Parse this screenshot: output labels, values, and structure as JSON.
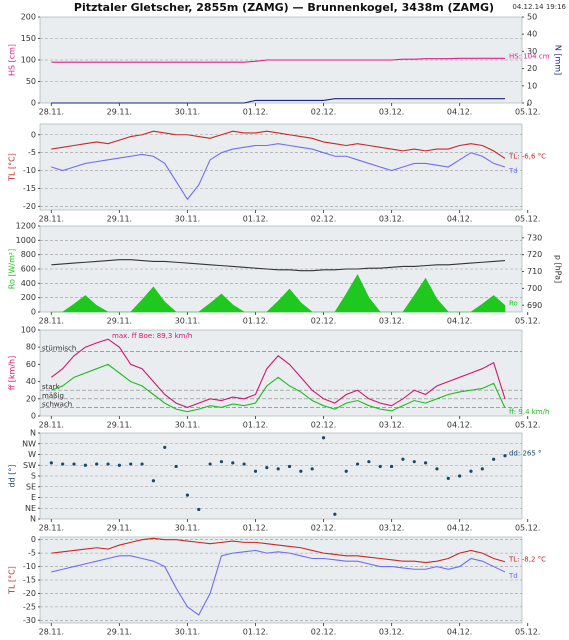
{
  "title": "Pitztaler Gletscher, 2855m (ZAMG) — Brunnenkogel, 3438m (ZAMG)",
  "timestamp": "04.12.14 19:16",
  "chart_data": [
    {
      "type": "line",
      "ylabel": "HS [cm]",
      "y2label": "N [mm]",
      "grid": true,
      "x": [
        0,
        4,
        8,
        12,
        16,
        20,
        24,
        28,
        32,
        36,
        40,
        44,
        48,
        52,
        56,
        60,
        64,
        68,
        72,
        76,
        80,
        84,
        88,
        92,
        96,
        100,
        104,
        108,
        112,
        116,
        120,
        124,
        128,
        132,
        136,
        140,
        144,
        148,
        152,
        156,
        160
      ],
      "xlim": [
        -4,
        166
      ],
      "xticks": [
        {
          "value": 0,
          "label": "28.11."
        },
        {
          "value": 24,
          "label": "29.11."
        },
        {
          "value": 48,
          "label": "30.11."
        },
        {
          "value": 72,
          "label": "01.12."
        },
        {
          "value": 96,
          "label": "02.12."
        },
        {
          "value": 120,
          "label": "03.12."
        },
        {
          "value": 144,
          "label": "04.12."
        },
        {
          "value": 168,
          "label": "05.12."
        }
      ],
      "ylim": [
        0,
        200
      ],
      "yticks": [
        0,
        50,
        100,
        150,
        200
      ],
      "y2lim": [
        0,
        50
      ],
      "y2ticks": [
        0,
        10,
        20,
        30,
        40,
        50
      ],
      "series": [
        {
          "label": "HS: 104 cm",
          "color": "#e0208a",
          "values": [
            95,
            95,
            95,
            95,
            95,
            95,
            95,
            95,
            95,
            95,
            95,
            95,
            95,
            95,
            95,
            95,
            95,
            95,
            97,
            100,
            100,
            100,
            100,
            100,
            100,
            100,
            100,
            100,
            100,
            100,
            100,
            102,
            102,
            103,
            103,
            103,
            104,
            104,
            104,
            104,
            104
          ]
        },
        {
          "color": "#1a237e",
          "axis": "y2",
          "values": [
            0,
            0,
            0,
            0,
            0,
            0,
            0,
            0,
            0,
            0,
            0,
            0,
            0,
            0,
            0,
            0,
            0,
            0,
            1.5,
            1.5,
            1.5,
            1.5,
            1.5,
            1.5,
            1.5,
            2.5,
            2.5,
            2.5,
            2.5,
            2.5,
            2.5,
            2.5,
            2.5,
            2.5,
            2.5,
            2.5,
            2.5,
            2.5,
            2.5,
            2.5,
            2.5
          ]
        }
      ]
    },
    {
      "type": "line",
      "ylabel": "TL [°C]",
      "grid": true,
      "x": [
        0,
        4,
        8,
        12,
        16,
        20,
        24,
        28,
        32,
        36,
        40,
        44,
        48,
        52,
        56,
        60,
        64,
        68,
        72,
        76,
        80,
        84,
        88,
        92,
        96,
        100,
        104,
        108,
        112,
        116,
        120,
        124,
        128,
        132,
        136,
        140,
        144,
        148,
        152,
        156,
        160
      ],
      "xlim": [
        -4,
        166
      ],
      "xticks": [
        {
          "value": 0,
          "label": "28.11."
        },
        {
          "value": 24,
          "label": "29.11."
        },
        {
          "value": 48,
          "label": "30.11."
        },
        {
          "value": 72,
          "label": "01.12."
        },
        {
          "value": 96,
          "label": "02.12."
        },
        {
          "value": 120,
          "label": "03.12."
        },
        {
          "value": 144,
          "label": "04.12."
        },
        {
          "value": 168,
          "label": "05.12."
        }
      ],
      "ylim": [
        -21,
        3
      ],
      "yticks": [
        -20,
        -15,
        -10,
        -5,
        0
      ],
      "series": [
        {
          "label": "TL: -6,6 °C",
          "color": "#c62828",
          "values": [
            -4,
            -3.5,
            -3,
            -2.5,
            -2,
            -2.5,
            -1.5,
            -0.5,
            0,
            1,
            0.5,
            0,
            0,
            -0.5,
            -1,
            0,
            1,
            0.5,
            0.5,
            1,
            0.5,
            0,
            -0.5,
            -1,
            -2,
            -2.5,
            -3,
            -2.5,
            -3,
            -3.5,
            -4,
            -4.5,
            -4,
            -4.5,
            -4,
            -4,
            -3,
            -2.5,
            -3,
            -4.5,
            -6.6
          ]
        },
        {
          "label": "Td",
          "color": "#6f6ff0",
          "values": [
            -9,
            -10,
            -9,
            -8,
            -7.5,
            -7,
            -6.5,
            -6,
            -5.5,
            -6,
            -8,
            -13,
            -18,
            -14,
            -7,
            -5,
            -4,
            -3.5,
            -3,
            -3,
            -2.5,
            -3,
            -3.5,
            -4,
            -5,
            -6,
            -6,
            -7,
            -8,
            -9,
            -10,
            -9,
            -8,
            -8,
            -8.5,
            -9,
            -7,
            -5,
            -6,
            -8,
            -9
          ]
        }
      ]
    },
    {
      "type": "line",
      "ylabel": "Ro [W/m²]",
      "y2label": "p [hPa]",
      "grid": true,
      "x": [
        0,
        4,
        8,
        12,
        16,
        20,
        24,
        28,
        32,
        36,
        40,
        44,
        48,
        52,
        56,
        60,
        64,
        68,
        72,
        76,
        80,
        84,
        88,
        92,
        96,
        100,
        104,
        108,
        112,
        116,
        120,
        124,
        128,
        132,
        136,
        140,
        144,
        148,
        152,
        156,
        160
      ],
      "xlim": [
        -4,
        166
      ],
      "xticks": [
        {
          "value": 0,
          "label": "28.11."
        },
        {
          "value": 24,
          "label": "29.11."
        },
        {
          "value": 48,
          "label": "30.11."
        },
        {
          "value": 72,
          "label": "01.12."
        },
        {
          "value": 96,
          "label": "02.12."
        },
        {
          "value": 120,
          "label": "03.12."
        },
        {
          "value": 144,
          "label": "04.12."
        },
        {
          "value": 168,
          "label": "05.12."
        }
      ],
      "ylim": [
        0,
        1200
      ],
      "yticks": [
        0,
        200,
        400,
        600,
        800,
        1000,
        1200
      ],
      "y2lim": [
        686,
        737
      ],
      "y2ticks": [
        690,
        700,
        710,
        720,
        730
      ],
      "series": [
        {
          "label": "Ro",
          "color": "#1ec81e",
          "area": true,
          "values": [
            0,
            0,
            110,
            230,
            90,
            0,
            0,
            0,
            170,
            350,
            140,
            0,
            0,
            0,
            120,
            250,
            100,
            0,
            0,
            0,
            150,
            320,
            130,
            0,
            0,
            0,
            250,
            520,
            200,
            0,
            0,
            0,
            230,
            470,
            180,
            0,
            0,
            0,
            110,
            230,
            90
          ]
        },
        {
          "color": "#333333",
          "axis": "y2",
          "values": [
            714,
            714.5,
            715,
            715.5,
            716,
            716.5,
            717,
            717,
            716.5,
            716,
            716,
            715.5,
            715,
            714.5,
            714,
            713.5,
            713,
            712.5,
            712,
            711.5,
            711,
            711,
            710.5,
            710.5,
            711,
            711,
            711.5,
            711.5,
            712,
            712,
            712.5,
            713,
            713,
            713.5,
            714,
            714,
            714.5,
            715,
            715.5,
            716,
            716.5
          ]
        }
      ]
    },
    {
      "type": "line",
      "ylabel": "ff [km/h]",
      "grid": false,
      "x": [
        0,
        4,
        8,
        12,
        16,
        20,
        24,
        28,
        32,
        36,
        40,
        44,
        48,
        52,
        56,
        60,
        64,
        68,
        72,
        76,
        80,
        84,
        88,
        92,
        96,
        100,
        104,
        108,
        112,
        116,
        120,
        124,
        128,
        132,
        136,
        140,
        144,
        148,
        152,
        156,
        160
      ],
      "xlim": [
        -4,
        166
      ],
      "xticks": [
        {
          "value": 0,
          "label": "28.11."
        },
        {
          "value": 24,
          "label": "29.11."
        },
        {
          "value": 48,
          "label": "30.11."
        },
        {
          "value": 72,
          "label": "01.12."
        },
        {
          "value": 96,
          "label": "02.12."
        },
        {
          "value": 120,
          "label": "03.12."
        },
        {
          "value": 144,
          "label": "04.12."
        },
        {
          "value": 168,
          "label": "05.12."
        }
      ],
      "ylim": [
        0,
        100
      ],
      "yticks": [
        0,
        20,
        40,
        60,
        80,
        100
      ],
      "reference_lines": [
        {
          "value": 75,
          "label": "stürmisch"
        },
        {
          "value": 30,
          "label": "stark"
        },
        {
          "value": 20,
          "label": "mäßig"
        },
        {
          "value": 10,
          "label": "schwach"
        }
      ],
      "series": [
        {
          "label": "max. ff Boe: 89,3 km/h",
          "label_at": "max",
          "color": "#d0186e",
          "values": [
            45,
            55,
            70,
            80,
            85,
            89.3,
            80,
            60,
            55,
            40,
            25,
            15,
            10,
            15,
            20,
            18,
            22,
            20,
            25,
            55,
            70,
            60,
            45,
            30,
            20,
            15,
            25,
            30,
            20,
            15,
            12,
            20,
            30,
            25,
            35,
            40,
            45,
            50,
            55,
            62,
            20
          ]
        },
        {
          "label": "ff: 9,4 km/h",
          "color": "#22bb22",
          "values": [
            30,
            35,
            45,
            50,
            55,
            60,
            50,
            40,
            35,
            25,
            15,
            8,
            5,
            8,
            12,
            10,
            14,
            12,
            15,
            35,
            45,
            35,
            28,
            18,
            12,
            8,
            15,
            18,
            12,
            8,
            6,
            12,
            18,
            15,
            20,
            25,
            28,
            30,
            32,
            38,
            9.4
          ]
        }
      ]
    },
    {
      "type": "scatter",
      "ylabel": "dd [°]",
      "grid": true,
      "x": [
        0,
        4,
        8,
        12,
        16,
        20,
        24,
        28,
        32,
        36,
        40,
        44,
        48,
        52,
        56,
        60,
        64,
        68,
        72,
        76,
        80,
        84,
        88,
        92,
        96,
        100,
        104,
        108,
        112,
        116,
        120,
        124,
        128,
        132,
        136,
        140,
        144,
        148,
        152,
        156,
        160
      ],
      "xlim": [
        -4,
        166
      ],
      "xticks": [
        {
          "value": 0,
          "label": "28.11."
        },
        {
          "value": 24,
          "label": "29.11."
        },
        {
          "value": 48,
          "label": "30.11."
        },
        {
          "value": 72,
          "label": "01.12."
        },
        {
          "value": 96,
          "label": "02.12."
        },
        {
          "value": 120,
          "label": "03.12."
        },
        {
          "value": 144,
          "label": "04.12."
        },
        {
          "value": 168,
          "label": "05.12."
        }
      ],
      "ylim": [
        0,
        360
      ],
      "yticks": [
        {
          "value": 0,
          "label": "N"
        },
        {
          "value": 45,
          "label": "NE"
        },
        {
          "value": 90,
          "label": "E"
        },
        {
          "value": 135,
          "label": "SE"
        },
        {
          "value": 180,
          "label": "S"
        },
        {
          "value": 225,
          "label": "SW"
        },
        {
          "value": 270,
          "label": "W"
        },
        {
          "value": 315,
          "label": "NW"
        },
        {
          "value": 360,
          "label": "N"
        }
      ],
      "series": [
        {
          "label": "dd: 265 °",
          "color": "#1a4a66",
          "values": [
            235,
            230,
            230,
            225,
            230,
            230,
            225,
            230,
            230,
            160,
            300,
            220,
            100,
            40,
            230,
            240,
            235,
            230,
            200,
            215,
            210,
            220,
            200,
            210,
            340,
            20,
            200,
            230,
            240,
            220,
            220,
            250,
            240,
            235,
            210,
            170,
            180,
            200,
            210,
            250,
            265
          ]
        }
      ]
    },
    {
      "type": "line",
      "ylabel": "TL [°C]",
      "grid": true,
      "x": [
        0,
        4,
        8,
        12,
        16,
        20,
        24,
        28,
        32,
        36,
        40,
        44,
        48,
        52,
        56,
        60,
        64,
        68,
        72,
        76,
        80,
        84,
        88,
        92,
        96,
        100,
        104,
        108,
        112,
        116,
        120,
        124,
        128,
        132,
        136,
        140,
        144,
        148,
        152,
        156,
        160
      ],
      "xlim": [
        -4,
        166
      ],
      "xticks": [
        {
          "value": 0,
          "label": "28.11."
        },
        {
          "value": 24,
          "label": "29.11."
        },
        {
          "value": 48,
          "label": "30.11."
        },
        {
          "value": 72,
          "label": "01.12."
        },
        {
          "value": 96,
          "label": "02.12."
        },
        {
          "value": 120,
          "label": "03.12."
        },
        {
          "value": 144,
          "label": "04.12."
        },
        {
          "value": 168,
          "label": "05.12."
        }
      ],
      "ylim": [
        -31,
        1
      ],
      "yticks": [
        -30,
        -25,
        -20,
        -15,
        -10,
        -5,
        0
      ],
      "series": [
        {
          "label": "TL: -8,2 °C",
          "color": "#c62828",
          "values": [
            -5,
            -4.5,
            -4,
            -3.5,
            -3,
            -3.5,
            -2,
            -1,
            0,
            0.5,
            0,
            0,
            -0.5,
            -1,
            -1.5,
            -1,
            -0.5,
            -1,
            -1,
            -1.5,
            -2,
            -2.5,
            -3,
            -4,
            -5,
            -5.5,
            -6,
            -6,
            -6.5,
            -7,
            -7.5,
            -8,
            -8,
            -8.5,
            -8,
            -7,
            -5,
            -4,
            -5,
            -7,
            -8.2
          ]
        },
        {
          "label": "Td",
          "color": "#6f6ff0",
          "values": [
            -12,
            -11,
            -10,
            -9,
            -8,
            -7,
            -6,
            -6,
            -7,
            -8,
            -10,
            -18,
            -25,
            -28,
            -20,
            -6,
            -5,
            -4.5,
            -4,
            -5,
            -4.5,
            -5,
            -6,
            -7,
            -7,
            -7.5,
            -8,
            -8,
            -9,
            -10,
            -10,
            -10.5,
            -11,
            -11,
            -10,
            -11,
            -10,
            -7,
            -8,
            -10,
            -12
          ]
        }
      ]
    }
  ]
}
